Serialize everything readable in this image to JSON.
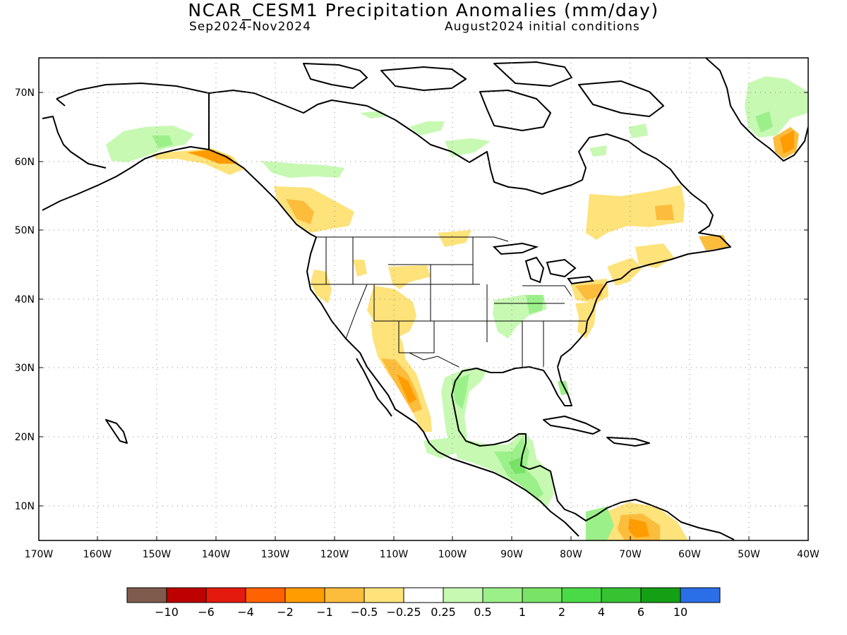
{
  "title": "NCAR_CESM1 Precipitation Anomalies (mm/day)",
  "subtitle_left": "Sep2024-Nov2024",
  "subtitle_right": "August2024 initial conditions",
  "axes": {
    "lat_labels": [
      "70N",
      "60N",
      "50N",
      "40N",
      "30N",
      "20N",
      "10N"
    ],
    "lon_labels": [
      "170W",
      "160W",
      "150W",
      "140W",
      "130W",
      "120W",
      "110W",
      "100W",
      "90W",
      "80W",
      "70W",
      "60W",
      "50W",
      "40W"
    ]
  },
  "colorbar": {
    "colors": [
      "#7f5b4e",
      "#bd0000",
      "#e31a0c",
      "#ff6200",
      "#ff9c00",
      "#fcbc3c",
      "#fee27a",
      "#ffffff",
      "#c7f9b3",
      "#9cf08a",
      "#78e366",
      "#4bda47",
      "#35c331",
      "#14a014",
      "#2b6fe8"
    ],
    "labels": [
      "−10",
      "−6",
      "−4",
      "−2",
      "−1",
      "−0.5",
      "−0.25",
      "0.25",
      "0.5",
      "1",
      "2",
      "4",
      "6",
      "10"
    ]
  },
  "legend_colors": {
    "dry_light": "#fee27a",
    "dry_mid": "#fcbc3c",
    "dry_strong": "#ff9c00",
    "wet_light": "#c7f9b3",
    "wet_mid": "#9cf08a",
    "wet_strong": "#78e366"
  }
}
